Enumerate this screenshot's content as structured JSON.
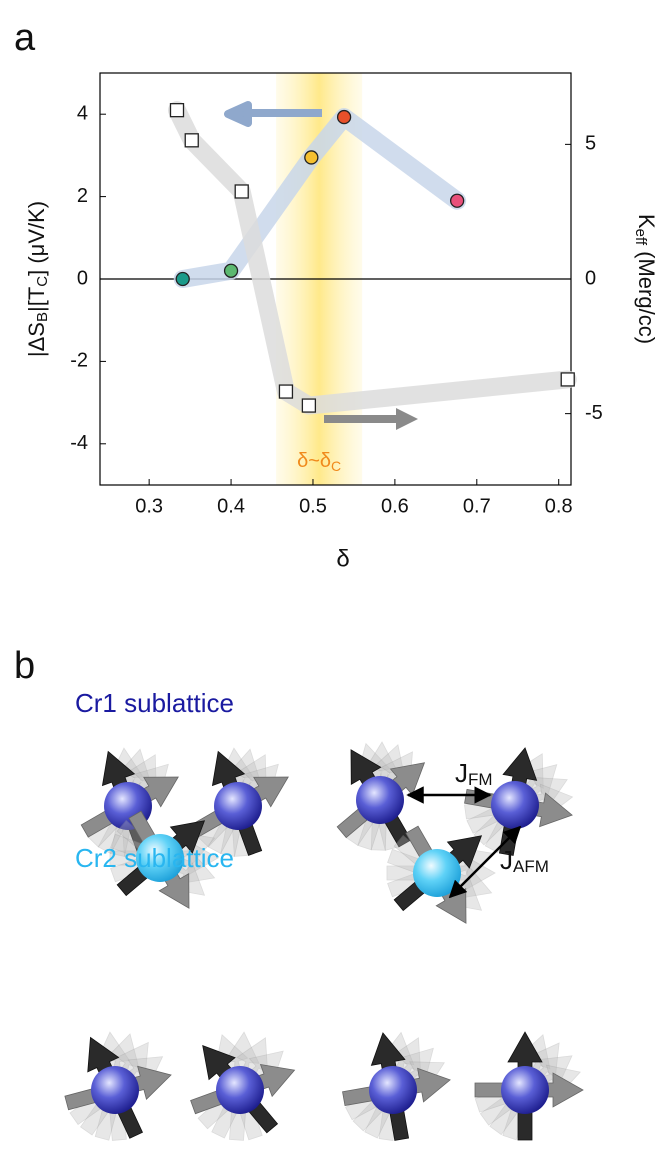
{
  "labels": [
    "a",
    "b"
  ],
  "chart_data": {
    "type": "scatter",
    "xlabel": "δ",
    "ylabel_parts": [
      "|ΔS",
      "B",
      "|[T",
      "C",
      "] (μV/K)"
    ],
    "y2label_parts": [
      "K",
      "eff",
      " (Merg/cc)"
    ],
    "band_label_parts": [
      "δ~δ",
      "C"
    ],
    "band": [
      0.455,
      0.56
    ],
    "xlim": [
      0.24,
      0.815
    ],
    "ylim": [
      -5,
      5
    ],
    "y2lim": [
      -7.65,
      7.65
    ],
    "xticks": [
      0.3,
      0.4,
      0.5,
      0.6,
      0.7,
      0.8
    ],
    "yticks": [
      -4,
      -2,
      0,
      2,
      4
    ],
    "y2ticks": [
      -5,
      0,
      5
    ],
    "series": [
      {
        "marker": "circle",
        "axis": "y",
        "trend_color": "#c8d6ea",
        "colors": [
          "#1a9a8a",
          "#5cb870",
          "#f5c030",
          "#e8502a",
          "#e8507a"
        ],
        "x": [
          0.341,
          0.4,
          0.498,
          0.538,
          0.676
        ],
        "values": [
          0,
          0.2,
          2.95,
          3.93,
          1.9
        ]
      },
      {
        "marker": "square",
        "axis": "y2",
        "trend_color": "#dcdcdc",
        "color": "#ffffff",
        "x": [
          0.334,
          0.352,
          0.413,
          0.467,
          0.495,
          0.811
        ],
        "values": [
          6.27,
          5.15,
          3.25,
          -4.18,
          -4.7,
          -3.73
        ]
      }
    ]
  },
  "diagram": {
    "cr1": "Cr1 sublattice",
    "cr2": "Cr2 sublattice",
    "jfm": [
      "J",
      "FM"
    ],
    "jafm": [
      "J",
      "AFM"
    ]
  }
}
